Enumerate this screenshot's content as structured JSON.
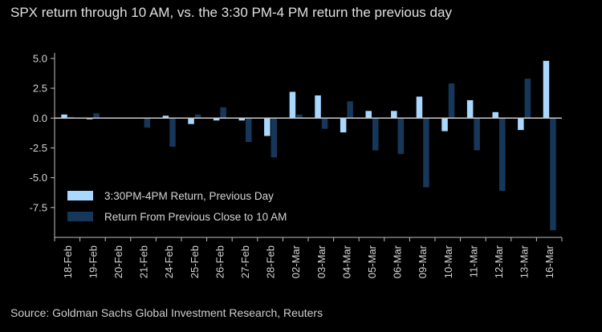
{
  "title": "SPX return through 10 AM, vs. the 3:30 PM-4 PM return the previous day",
  "source": "Source: Goldman Sachs Global Investment Research, Reuters",
  "colors": {
    "series1": "#a9d8ff",
    "series2": "#17375a",
    "background": "#000000",
    "axis": "#bfbfbf"
  },
  "chart_data": {
    "type": "bar",
    "categories": [
      "18-Feb",
      "19-Feb",
      "20-Feb",
      "21-Feb",
      "24-Feb",
      "25-Feb",
      "26-Feb",
      "27-Feb",
      "28-Feb",
      "02-Mar",
      "03-Mar",
      "04-Mar",
      "05-Mar",
      "06-Mar",
      "09-Mar",
      "10-Mar",
      "11-Mar",
      "12-Mar",
      "13-Mar",
      "16-Mar"
    ],
    "series": [
      {
        "name": "3:30PM-4PM Return, Previous Day",
        "values": [
          0.3,
          -0.1,
          0.0,
          0.0,
          0.2,
          -0.5,
          -0.2,
          -0.2,
          -1.5,
          2.2,
          1.9,
          -1.2,
          0.6,
          0.6,
          1.8,
          -1.1,
          1.5,
          0.5,
          -1.0,
          4.8
        ]
      },
      {
        "name": "Return From Previous Close to 10 AM",
        "values": [
          0.1,
          0.4,
          0.0,
          -0.8,
          -2.4,
          0.3,
          0.9,
          -2.0,
          -3.3,
          0.3,
          -0.9,
          1.4,
          -2.7,
          -3.0,
          -5.8,
          2.9,
          -2.7,
          -6.1,
          3.3,
          -9.4
        ]
      }
    ],
    "ylim": [
      -10,
      6
    ],
    "yticks": [
      "5.0",
      "2.5",
      "0.0",
      "-2.5",
      "-5.0",
      "-7.5"
    ],
    "ytick_values": [
      5,
      2.5,
      0,
      -2.5,
      -5,
      -7.5
    ],
    "legend_position": "lower-left",
    "grid": false
  }
}
